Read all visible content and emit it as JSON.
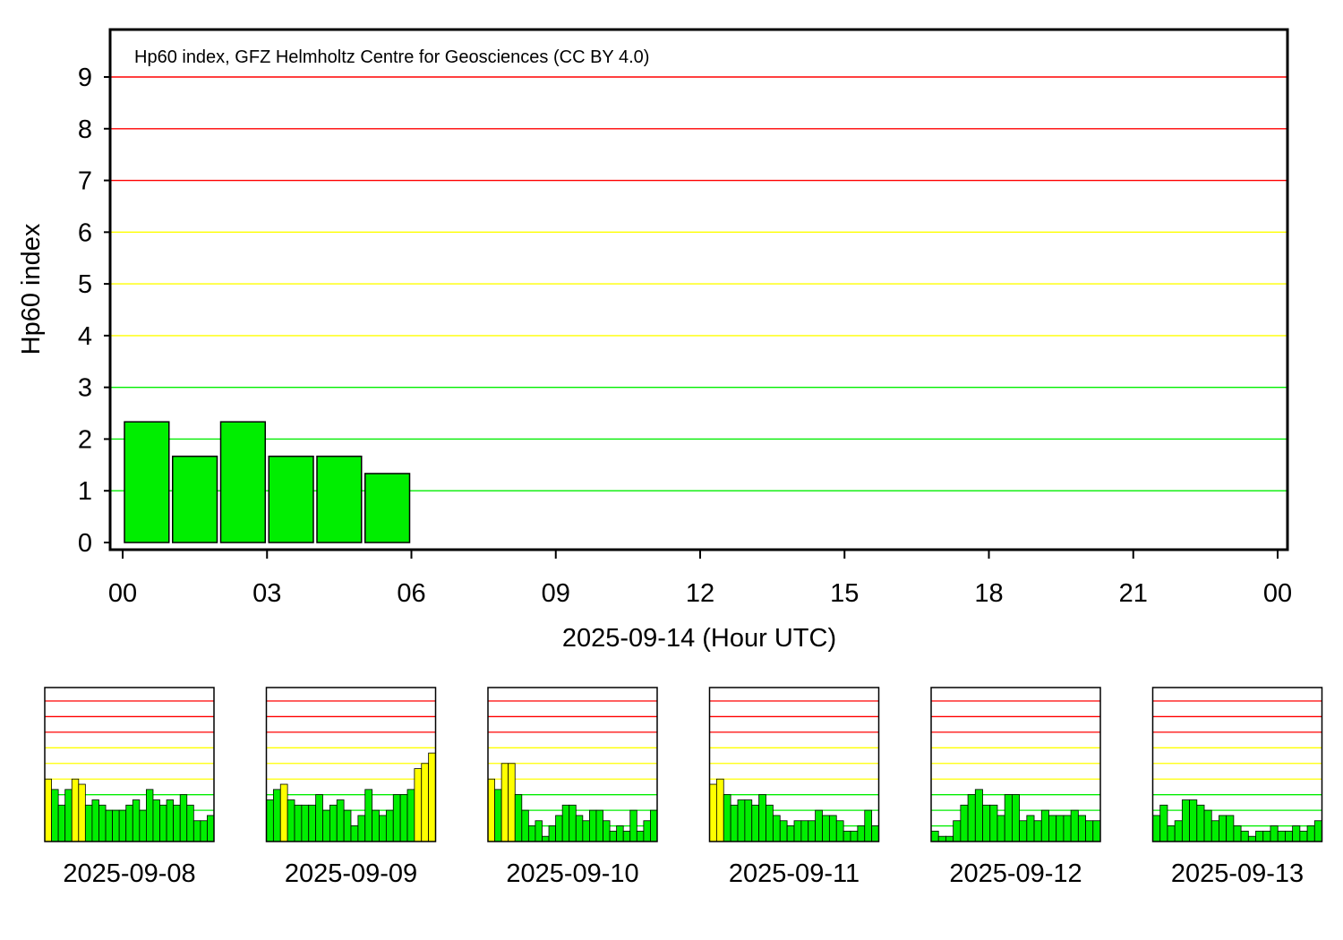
{
  "colors": {
    "quiet": "#00ee00",
    "active": "#ffff00",
    "storm": "#ff0000",
    "frame": "#000000",
    "background": "#ffffff"
  },
  "chart_data": {
    "type": "bar",
    "attribution": "Hp60 index, GFZ Helmholtz Centre for Geosciences (CC BY 4.0)",
    "ylabel": "Hp60 index",
    "xlabel": "2025-09-14 (Hour UTC)",
    "ylim": [
      0,
      9.5
    ],
    "xlim": [
      0,
      24
    ],
    "y_ticks": [
      "0",
      "1",
      "2",
      "3",
      "4",
      "5",
      "6",
      "7",
      "8",
      "9"
    ],
    "x_ticks": [
      {
        "hour": 0,
        "label": "00"
      },
      {
        "hour": 3,
        "label": "03"
      },
      {
        "hour": 6,
        "label": "06"
      },
      {
        "hour": 9,
        "label": "09"
      },
      {
        "hour": 12,
        "label": "12"
      },
      {
        "hour": 15,
        "label": "15"
      },
      {
        "hour": 18,
        "label": "18"
      },
      {
        "hour": 21,
        "label": "21"
      },
      {
        "hour": 24,
        "label": "00"
      }
    ],
    "reference_lines": [
      {
        "value": 1,
        "level": "quiet"
      },
      {
        "value": 2,
        "level": "quiet"
      },
      {
        "value": 3,
        "level": "quiet"
      },
      {
        "value": 4,
        "level": "active"
      },
      {
        "value": 5,
        "level": "active"
      },
      {
        "value": 6,
        "level": "active"
      },
      {
        "value": 7,
        "level": "storm"
      },
      {
        "value": 8,
        "level": "storm"
      },
      {
        "value": 9,
        "level": "storm"
      }
    ],
    "series": [
      {
        "hours": [
          0,
          1,
          2,
          3,
          4,
          5
        ],
        "values": [
          2.333,
          1.667,
          2.333,
          1.667,
          1.667,
          1.333
        ]
      }
    ],
    "grid": "horizontal colored threshold lines",
    "previous_days": [
      {
        "date": "2025-09-08",
        "values": [
          4.0,
          3.333,
          2.333,
          3.333,
          4.0,
          3.667,
          2.333,
          2.667,
          2.333,
          2.0,
          2.0,
          2.0,
          2.333,
          2.667,
          2.0,
          3.333,
          2.667,
          2.333,
          2.667,
          2.333,
          3.0,
          2.333,
          1.333,
          1.333,
          1.667
        ]
      },
      {
        "date": "2025-09-09",
        "values": [
          2.667,
          3.333,
          3.667,
          2.667,
          2.333,
          2.333,
          2.333,
          3.0,
          2.0,
          2.333,
          2.667,
          2.0,
          1.0,
          1.667,
          3.333,
          2.0,
          1.667,
          2.0,
          3.0,
          3.0,
          3.333,
          4.667,
          5.0,
          5.667
        ]
      },
      {
        "date": "2025-09-10",
        "values": [
          4.0,
          3.333,
          5.0,
          5.0,
          3.0,
          2.0,
          1.0,
          1.333,
          0.333,
          1.0,
          1.667,
          2.333,
          2.333,
          1.667,
          1.333,
          2.0,
          2.0,
          1.333,
          0.667,
          1.0,
          0.667,
          2.0,
          0.667,
          1.333,
          2.0
        ]
      },
      {
        "date": "2025-09-11",
        "values": [
          3.667,
          4.0,
          3.0,
          2.333,
          2.667,
          2.667,
          2.333,
          3.0,
          2.333,
          1.667,
          1.333,
          1.0,
          1.333,
          1.333,
          1.333,
          2.0,
          1.667,
          1.667,
          1.333,
          0.667,
          0.667,
          1.0,
          2.0,
          1.0
        ]
      },
      {
        "date": "2025-09-12",
        "values": [
          0.667,
          0.333,
          0.333,
          1.333,
          2.333,
          3.0,
          3.333,
          2.333,
          2.333,
          1.667,
          3.0,
          3.0,
          1.333,
          1.667,
          1.333,
          2.0,
          1.667,
          1.667,
          1.667,
          2.0,
          1.667,
          1.333,
          1.333
        ]
      },
      {
        "date": "2025-09-13",
        "values": [
          1.667,
          2.333,
          1.0,
          1.333,
          2.667,
          2.667,
          2.333,
          2.0,
          1.333,
          1.667,
          1.667,
          1.0,
          0.667,
          0.333,
          0.667,
          0.667,
          1.0,
          0.667,
          0.667,
          1.0,
          0.667,
          1.0,
          1.333
        ]
      }
    ]
  }
}
